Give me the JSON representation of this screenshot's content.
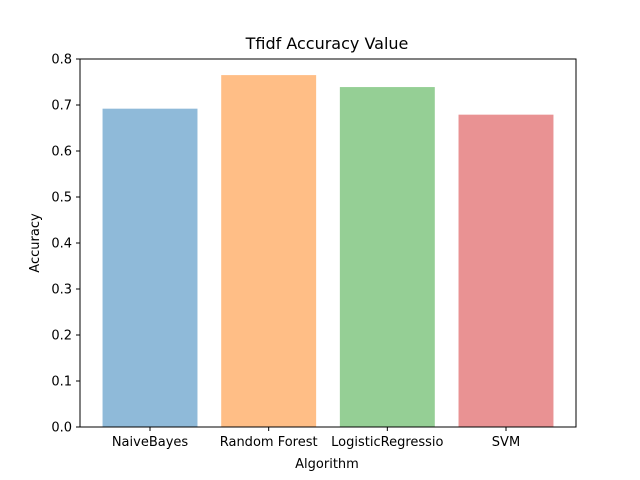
{
  "chart_data": {
    "type": "bar",
    "title": "Tfidf Accuracy Value",
    "xlabel": "Algorithm",
    "ylabel": "Accuracy",
    "categories": [
      "NaiveBayes",
      "Random Forest",
      "LogisticRegressio",
      "SVM"
    ],
    "values": [
      0.692,
      0.765,
      0.739,
      0.679
    ],
    "ylim": [
      0,
      0.8
    ],
    "yticks": [
      0.0,
      0.1,
      0.2,
      0.3,
      0.4,
      0.5,
      0.6,
      0.7,
      0.8
    ],
    "ytick_labels": [
      "0.0",
      "0.1",
      "0.2",
      "0.3",
      "0.4",
      "0.5",
      "0.6",
      "0.7",
      "0.8"
    ],
    "grid": false,
    "legend": "none",
    "colors": [
      "#8fbad9",
      "#ffbe86",
      "#95cf95",
      "#e99293"
    ]
  }
}
